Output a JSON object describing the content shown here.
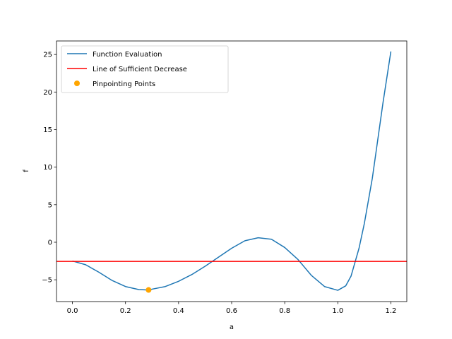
{
  "chart_data": {
    "type": "line",
    "xlabel": "a",
    "ylabel": "f",
    "xlim": [
      -0.06,
      1.26
    ],
    "ylim": [
      -7.9,
      26.8
    ],
    "x_ticks": [
      0.0,
      0.2,
      0.4,
      0.6,
      0.8,
      1.0,
      1.2
    ],
    "x_tick_labels": [
      "0.0",
      "0.2",
      "0.4",
      "0.6",
      "0.8",
      "1.0",
      "1.2"
    ],
    "y_ticks": [
      -5,
      0,
      5,
      10,
      15,
      20,
      25
    ],
    "y_tick_labels": [
      "−5",
      "0",
      "5",
      "10",
      "15",
      "20",
      "25"
    ],
    "legend_position": "top-left",
    "series": [
      {
        "name": "Function Evaluation",
        "kind": "line",
        "color": "#1f77b4",
        "x": [
          0.0,
          0.05,
          0.1,
          0.15,
          0.2,
          0.25,
          0.28,
          0.3,
          0.35,
          0.4,
          0.45,
          0.5,
          0.55,
          0.6,
          0.65,
          0.7,
          0.75,
          0.8,
          0.85,
          0.9,
          0.95,
          1.0,
          1.03,
          1.05,
          1.08,
          1.1,
          1.13,
          1.15,
          1.17,
          1.2
        ],
        "y": [
          -2.5,
          -3.0,
          -4.0,
          -5.1,
          -5.9,
          -6.3,
          -6.35,
          -6.25,
          -5.9,
          -5.2,
          -4.3,
          -3.2,
          -2.0,
          -0.8,
          0.2,
          0.6,
          0.4,
          -0.7,
          -2.3,
          -4.4,
          -5.9,
          -6.4,
          -5.8,
          -4.5,
          -0.8,
          2.5,
          8.5,
          13.5,
          18.5,
          25.4
        ]
      },
      {
        "name": "Line of Sufficient Decrease",
        "kind": "line",
        "color": "#ff0000",
        "x": [
          -0.06,
          1.26
        ],
        "y": [
          -2.55,
          -2.55
        ]
      },
      {
        "name": "Pinpointing Points",
        "kind": "scatter",
        "color": "#ffa500",
        "x": [
          0.287
        ],
        "y": [
          -6.35
        ]
      }
    ]
  }
}
